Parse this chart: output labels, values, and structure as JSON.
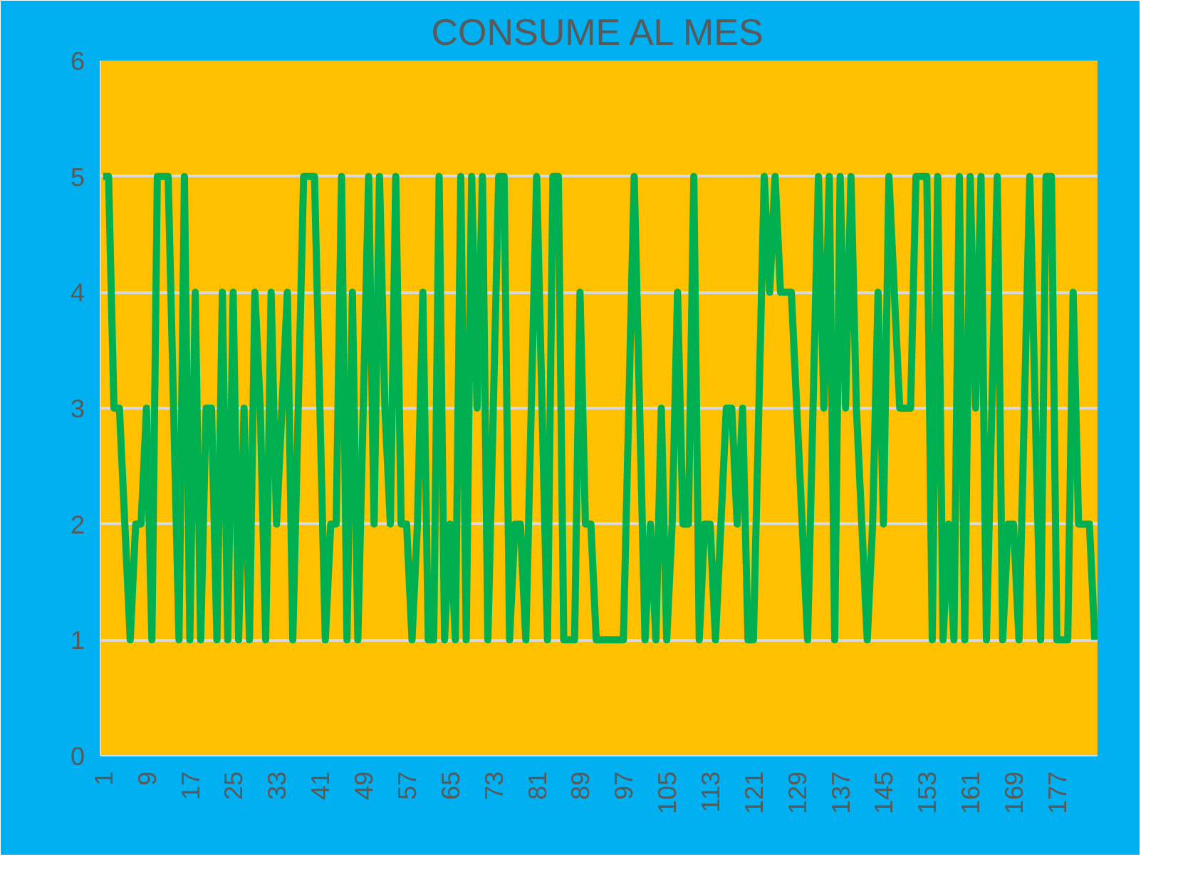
{
  "chart_data": {
    "type": "line",
    "title": "CONSUME AL MES",
    "categories": [
      "1",
      null,
      null,
      null,
      null,
      null,
      null,
      null,
      "9",
      null,
      null,
      null,
      null,
      null,
      null,
      null,
      "17",
      null,
      null,
      null,
      null,
      null,
      null,
      null,
      "25",
      null,
      null,
      null,
      null,
      null,
      null,
      null,
      "33",
      null,
      null,
      null,
      null,
      null,
      null,
      null,
      "41",
      null,
      null,
      null,
      null,
      null,
      null,
      null,
      "49",
      null,
      null,
      null,
      null,
      null,
      null,
      null,
      "57",
      null,
      null,
      null,
      null,
      null,
      null,
      null,
      "65",
      null,
      null,
      null,
      null,
      null,
      null,
      null,
      "73",
      null,
      null,
      null,
      null,
      null,
      null,
      null,
      "81",
      null,
      null,
      null,
      null,
      null,
      null,
      null,
      "89",
      null,
      null,
      null,
      null,
      null,
      null,
      null,
      "97",
      null,
      null,
      null,
      null,
      null,
      null,
      null,
      "105",
      null,
      null,
      null,
      null,
      null,
      null,
      null,
      "113",
      null,
      null,
      null,
      null,
      null,
      null,
      null,
      "121",
      null,
      null,
      null,
      null,
      null,
      null,
      null,
      "129",
      null,
      null,
      null,
      null,
      null,
      null,
      null,
      "137",
      null,
      null,
      null,
      null,
      null,
      null,
      null,
      "145",
      null,
      null,
      null,
      null,
      null,
      null,
      null,
      "153",
      null,
      null,
      null,
      null,
      null,
      null,
      null,
      "161",
      null,
      null,
      null,
      null,
      null,
      null,
      null,
      "169",
      null,
      null,
      null,
      null,
      null,
      null,
      null,
      "177",
      null,
      null,
      null,
      null,
      null,
      null,
      null
    ],
    "series": [
      {
        "color": "#00b050",
        "values": [
          5,
          5,
          3,
          3,
          2,
          1,
          2,
          2,
          3,
          1,
          5,
          5,
          5,
          3,
          1,
          5,
          1,
          4,
          1,
          3,
          3,
          1,
          4,
          1,
          4,
          1,
          3,
          1,
          4,
          3,
          1,
          4,
          2,
          3,
          4,
          1,
          3,
          5,
          5,
          5,
          3,
          1,
          2,
          2,
          5,
          1,
          4,
          1,
          3,
          5,
          2,
          5,
          3,
          2,
          5,
          2,
          2,
          1,
          2,
          4,
          1,
          1,
          5,
          1,
          2,
          1,
          5,
          1,
          5,
          3,
          5,
          1,
          3,
          5,
          5,
          1,
          2,
          2,
          1,
          3,
          5,
          3,
          1,
          5,
          5,
          1,
          1,
          1,
          4,
          2,
          2,
          1,
          1,
          1,
          1,
          1,
          1,
          3,
          5,
          3,
          1,
          2,
          1,
          3,
          1,
          2,
          4,
          2,
          2,
          5,
          1,
          2,
          2,
          1,
          2,
          3,
          3,
          2,
          3,
          1,
          1,
          3,
          5,
          4,
          5,
          4,
          4,
          4,
          3,
          2,
          1,
          3,
          5,
          3,
          5,
          1,
          5,
          3,
          5,
          3,
          2,
          1,
          2,
          4,
          2,
          5,
          4,
          3,
          3,
          3,
          5,
          5,
          5,
          1,
          5,
          1,
          2,
          1,
          5,
          1,
          5,
          3,
          5,
          1,
          3,
          5,
          1,
          2,
          2,
          1,
          3,
          5,
          3,
          1,
          5,
          5,
          1,
          1,
          1,
          4,
          2,
          2,
          2,
          1
        ]
      }
    ],
    "ylim": [
      0,
      6
    ],
    "yticks": [
      0,
      1,
      2,
      3,
      4,
      5,
      6
    ],
    "grid": "y",
    "line_style": "solid"
  }
}
